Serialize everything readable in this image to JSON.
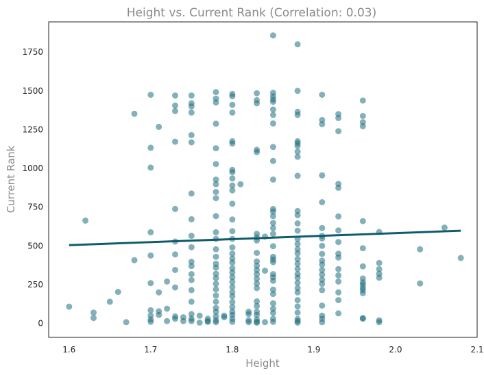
{
  "chart_data": {
    "type": "scatter",
    "title": "Height vs. Current Rank (Correlation: 0.03)",
    "xlabel": "Height",
    "ylabel": "Current Rank",
    "xlim": [
      1.575,
      2.1
    ],
    "ylim": [
      -90,
      1945
    ],
    "xticks": [
      1.6,
      1.7,
      1.8,
      1.9,
      2.0,
      2.1
    ],
    "xtick_labels": [
      "1.6",
      "1.7",
      "1.8",
      "1.9",
      "2.0",
      "2.1"
    ],
    "yticks": [
      0,
      250,
      500,
      750,
      1000,
      1250,
      1500,
      1750
    ],
    "ytick_labels": [
      "0",
      "250",
      "500",
      "750",
      "1000",
      "1250",
      "1500",
      "1750"
    ],
    "grid": false,
    "point_color": "#1f6f7f",
    "line_color": "#0e5c6e",
    "trend_line": {
      "x": [
        1.6,
        2.08
      ],
      "y": [
        505,
        598
      ]
    },
    "points": [
      [
        1.6,
        108
      ],
      [
        1.62,
        663
      ],
      [
        1.63,
        70
      ],
      [
        1.63,
        35
      ],
      [
        1.65,
        140
      ],
      [
        1.66,
        203
      ],
      [
        1.67,
        8
      ],
      [
        1.68,
        1352
      ],
      [
        1.68,
        408
      ],
      [
        1.7,
        1475
      ],
      [
        1.7,
        1133
      ],
      [
        1.7,
        1005
      ],
      [
        1.7,
        588
      ],
      [
        1.7,
        438
      ],
      [
        1.7,
        260
      ],
      [
        1.7,
        85
      ],
      [
        1.7,
        50
      ],
      [
        1.7,
        25
      ],
      [
        1.7,
        10
      ],
      [
        1.71,
        1268
      ],
      [
        1.71,
        200
      ],
      [
        1.71,
        78
      ],
      [
        1.71,
        55
      ],
      [
        1.72,
        270
      ],
      [
        1.72,
        95
      ],
      [
        1.72,
        15
      ],
      [
        1.73,
        1470
      ],
      [
        1.73,
        1405
      ],
      [
        1.73,
        1370
      ],
      [
        1.73,
        1172
      ],
      [
        1.73,
        738
      ],
      [
        1.73,
        528
      ],
      [
        1.73,
        445
      ],
      [
        1.73,
        345
      ],
      [
        1.73,
        232
      ],
      [
        1.73,
        45
      ],
      [
        1.73,
        30
      ],
      [
        1.74,
        40
      ],
      [
        1.74,
        15
      ],
      [
        1.75,
        1470
      ],
      [
        1.75,
        1420
      ],
      [
        1.75,
        1400
      ],
      [
        1.75,
        1360
      ],
      [
        1.75,
        1215
      ],
      [
        1.75,
        1168
      ],
      [
        1.75,
        838
      ],
      [
        1.75,
        672
      ],
      [
        1.75,
        565
      ],
      [
        1.75,
        492
      ],
      [
        1.75,
        398
      ],
      [
        1.75,
        370
      ],
      [
        1.75,
        318
      ],
      [
        1.75,
        280
      ],
      [
        1.75,
        215
      ],
      [
        1.75,
        140
      ],
      [
        1.75,
        60
      ],
      [
        1.75,
        30
      ],
      [
        1.75,
        15
      ],
      [
        1.76,
        50
      ],
      [
        1.76,
        5
      ],
      [
        1.77,
        10
      ],
      [
        1.77,
        15
      ],
      [
        1.77,
        30
      ],
      [
        1.78,
        1492
      ],
      [
        1.78,
        1450
      ],
      [
        1.78,
        1425
      ],
      [
        1.78,
        1288
      ],
      [
        1.78,
        1130
      ],
      [
        1.78,
        1028
      ],
      [
        1.78,
        928
      ],
      [
        1.78,
        898
      ],
      [
        1.78,
        848
      ],
      [
        1.78,
        808
      ],
      [
        1.78,
        692
      ],
      [
        1.78,
        588
      ],
      [
        1.78,
        545
      ],
      [
        1.78,
        478
      ],
      [
        1.78,
        430
      ],
      [
        1.78,
        385
      ],
      [
        1.78,
        360
      ],
      [
        1.78,
        320
      ],
      [
        1.78,
        292
      ],
      [
        1.78,
        255
      ],
      [
        1.78,
        220
      ],
      [
        1.78,
        180
      ],
      [
        1.78,
        140
      ],
      [
        1.78,
        100
      ],
      [
        1.78,
        75
      ],
      [
        1.78,
        45
      ],
      [
        1.78,
        20
      ],
      [
        1.78,
        8
      ],
      [
        1.79,
        50
      ],
      [
        1.79,
        40
      ],
      [
        1.8,
        1480
      ],
      [
        1.8,
        1465
      ],
      [
        1.8,
        1410
      ],
      [
        1.8,
        1360
      ],
      [
        1.8,
        1175
      ],
      [
        1.8,
        1160
      ],
      [
        1.8,
        990
      ],
      [
        1.8,
        975
      ],
      [
        1.8,
        935
      ],
      [
        1.8,
        890
      ],
      [
        1.8,
        858
      ],
      [
        1.8,
        772
      ],
      [
        1.8,
        670
      ],
      [
        1.8,
        595
      ],
      [
        1.8,
        545
      ],
      [
        1.8,
        490
      ],
      [
        1.8,
        450
      ],
      [
        1.8,
        418
      ],
      [
        1.8,
        392
      ],
      [
        1.8,
        355
      ],
      [
        1.8,
        328
      ],
      [
        1.8,
        298
      ],
      [
        1.8,
        268
      ],
      [
        1.8,
        235
      ],
      [
        1.8,
        202
      ],
      [
        1.8,
        175
      ],
      [
        1.8,
        138
      ],
      [
        1.8,
        105
      ],
      [
        1.8,
        75
      ],
      [
        1.8,
        55
      ],
      [
        1.8,
        30
      ],
      [
        1.8,
        10
      ],
      [
        1.81,
        898
      ],
      [
        1.82,
        75
      ],
      [
        1.82,
        60
      ],
      [
        1.82,
        20
      ],
      [
        1.82,
        8
      ],
      [
        1.83,
        1485
      ],
      [
        1.83,
        1440
      ],
      [
        1.83,
        1420
      ],
      [
        1.83,
        1120
      ],
      [
        1.83,
        1105
      ],
      [
        1.83,
        578
      ],
      [
        1.83,
        555
      ],
      [
        1.83,
        535
      ],
      [
        1.83,
        455
      ],
      [
        1.83,
        400
      ],
      [
        1.83,
        372
      ],
      [
        1.83,
        345
      ],
      [
        1.83,
        318
      ],
      [
        1.83,
        288
      ],
      [
        1.83,
        258
      ],
      [
        1.83,
        228
      ],
      [
        1.83,
        142
      ],
      [
        1.83,
        112
      ],
      [
        1.83,
        75
      ],
      [
        1.83,
        55
      ],
      [
        1.83,
        25
      ],
      [
        1.83,
        10
      ],
      [
        1.83,
        5
      ],
      [
        1.84,
        8
      ],
      [
        1.84,
        560
      ],
      [
        1.84,
        340
      ],
      [
        1.85,
        1858
      ],
      [
        1.85,
        1488
      ],
      [
        1.85,
        1465
      ],
      [
        1.85,
        1445
      ],
      [
        1.85,
        1430
      ],
      [
        1.85,
        1380
      ],
      [
        1.85,
        1345
      ],
      [
        1.85,
        1290
      ],
      [
        1.85,
        1138
      ],
      [
        1.85,
        1048
      ],
      [
        1.85,
        928
      ],
      [
        1.85,
        738
      ],
      [
        1.85,
        722
      ],
      [
        1.85,
        692
      ],
      [
        1.85,
        648
      ],
      [
        1.85,
        615
      ],
      [
        1.85,
        578
      ],
      [
        1.85,
        498
      ],
      [
        1.85,
        430
      ],
      [
        1.85,
        412
      ],
      [
        1.85,
        395
      ],
      [
        1.85,
        318
      ],
      [
        1.85,
        298
      ],
      [
        1.85,
        275
      ],
      [
        1.85,
        218
      ],
      [
        1.85,
        190
      ],
      [
        1.85,
        130
      ],
      [
        1.85,
        95
      ],
      [
        1.85,
        68
      ],
      [
        1.85,
        30
      ],
      [
        1.85,
        10
      ],
      [
        1.88,
        1800
      ],
      [
        1.88,
        1500
      ],
      [
        1.88,
        1365
      ],
      [
        1.88,
        1345
      ],
      [
        1.88,
        1175
      ],
      [
        1.88,
        1162
      ],
      [
        1.88,
        1145
      ],
      [
        1.88,
        1108
      ],
      [
        1.88,
        1075
      ],
      [
        1.88,
        952
      ],
      [
        1.88,
        725
      ],
      [
        1.88,
        698
      ],
      [
        1.88,
        645
      ],
      [
        1.88,
        598
      ],
      [
        1.88,
        545
      ],
      [
        1.88,
        512
      ],
      [
        1.88,
        478
      ],
      [
        1.88,
        452
      ],
      [
        1.88,
        415
      ],
      [
        1.88,
        385
      ],
      [
        1.88,
        352
      ],
      [
        1.88,
        318
      ],
      [
        1.88,
        295
      ],
      [
        1.88,
        262
      ],
      [
        1.88,
        228
      ],
      [
        1.88,
        200
      ],
      [
        1.88,
        150
      ],
      [
        1.88,
        110
      ],
      [
        1.88,
        70
      ],
      [
        1.88,
        28
      ],
      [
        1.88,
        15
      ],
      [
        1.88,
        5
      ],
      [
        1.91,
        1475
      ],
      [
        1.91,
        1312
      ],
      [
        1.91,
        1285
      ],
      [
        1.91,
        955
      ],
      [
        1.91,
        782
      ],
      [
        1.91,
        615
      ],
      [
        1.91,
        565
      ],
      [
        1.91,
        548
      ],
      [
        1.91,
        500
      ],
      [
        1.91,
        448
      ],
      [
        1.91,
        405
      ],
      [
        1.91,
        380
      ],
      [
        1.91,
        345
      ],
      [
        1.91,
        315
      ],
      [
        1.91,
        282
      ],
      [
        1.91,
        255
      ],
      [
        1.91,
        215
      ],
      [
        1.91,
        115
      ],
      [
        1.91,
        50
      ],
      [
        1.91,
        30
      ],
      [
        1.91,
        8
      ],
      [
        1.93,
        1350
      ],
      [
        1.93,
        1325
      ],
      [
        1.93,
        1240
      ],
      [
        1.93,
        900
      ],
      [
        1.93,
        875
      ],
      [
        1.93,
        690
      ],
      [
        1.93,
        600
      ],
      [
        1.93,
        525
      ],
      [
        1.93,
        450
      ],
      [
        1.93,
        425
      ],
      [
        1.93,
        350
      ],
      [
        1.93,
        310
      ],
      [
        1.93,
        270
      ],
      [
        1.93,
        200
      ],
      [
        1.93,
        150
      ],
      [
        1.93,
        65
      ],
      [
        1.96,
        1438
      ],
      [
        1.96,
        1338
      ],
      [
        1.96,
        1298
      ],
      [
        1.96,
        1272
      ],
      [
        1.96,
        660
      ],
      [
        1.96,
        485
      ],
      [
        1.96,
        368
      ],
      [
        1.96,
        290
      ],
      [
        1.96,
        265
      ],
      [
        1.96,
        250
      ],
      [
        1.96,
        230
      ],
      [
        1.96,
        215
      ],
      [
        1.96,
        195
      ],
      [
        1.96,
        35
      ],
      [
        1.96,
        30
      ],
      [
        1.98,
        590
      ],
      [
        1.98,
        390
      ],
      [
        1.98,
        350
      ],
      [
        1.98,
        320
      ],
      [
        1.98,
        295
      ],
      [
        1.98,
        20
      ],
      [
        1.98,
        8
      ],
      [
        2.03,
        478
      ],
      [
        2.03,
        258
      ],
      [
        2.06,
        618
      ],
      [
        2.08,
        422
      ]
    ]
  }
}
